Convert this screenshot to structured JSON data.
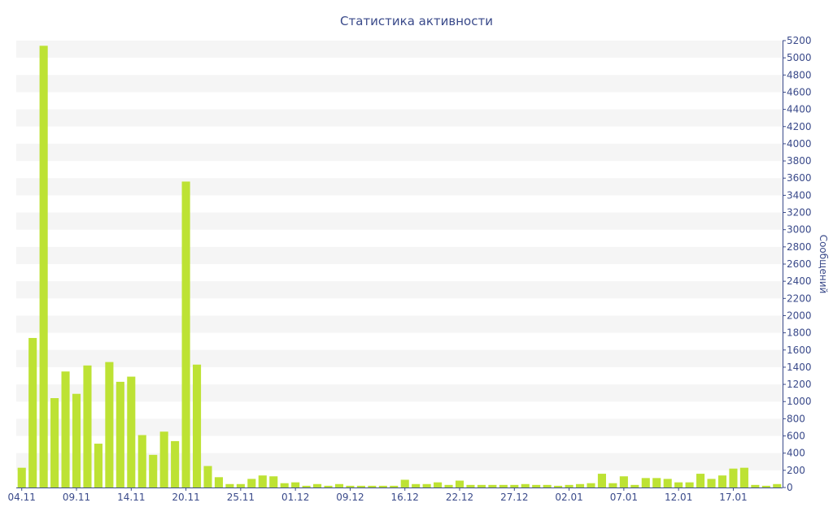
{
  "chart_data": {
    "type": "bar",
    "title": "Статистика активности",
    "ylabel": "Сообщений",
    "ylim": [
      0,
      5200
    ],
    "y_ticks": [
      0,
      200,
      400,
      600,
      800,
      1000,
      1200,
      1400,
      1600,
      1800,
      2000,
      2200,
      2400,
      2600,
      2800,
      3000,
      3200,
      3400,
      3600,
      3800,
      4000,
      4200,
      4400,
      4600,
      4800,
      5000,
      5200
    ],
    "x_tick_labels": [
      "04.11",
      "09.11",
      "14.11",
      "20.11",
      "25.11",
      "01.12",
      "09.12",
      "16.12",
      "22.12",
      "27.12",
      "02.01",
      "07.01",
      "12.01",
      "17.01"
    ],
    "x_tick_index": [
      0,
      5,
      10,
      15,
      20,
      25,
      30,
      35,
      40,
      45,
      50,
      55,
      60,
      65
    ],
    "grid": true,
    "colors": {
      "bar": "#bde234",
      "band": "#f5f5f5",
      "text": "#3a4a8a",
      "axis": "#3a4a8a"
    },
    "values": [
      230,
      1740,
      5140,
      1040,
      1350,
      1090,
      1420,
      510,
      1460,
      1230,
      1290,
      610,
      380,
      650,
      540,
      3560,
      1430,
      250,
      120,
      40,
      40,
      100,
      140,
      130,
      50,
      60,
      20,
      40,
      20,
      40,
      20,
      20,
      20,
      20,
      20,
      90,
      40,
      40,
      60,
      30,
      80,
      30,
      30,
      30,
      30,
      30,
      40,
      30,
      30,
      20,
      30,
      40,
      50,
      160,
      50,
      130,
      30,
      110,
      110,
      100,
      60,
      60,
      160,
      100,
      140,
      220,
      230,
      30,
      20,
      40
    ]
  }
}
